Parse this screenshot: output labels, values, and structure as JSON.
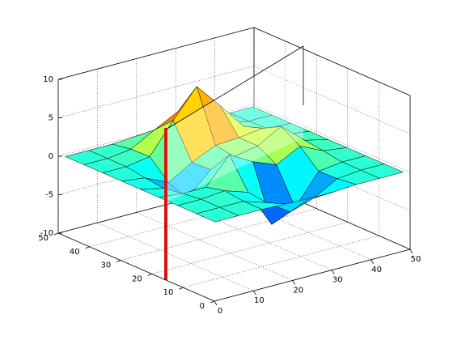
{
  "chart_data": {
    "type": "surface",
    "x": [
      1,
      7,
      13,
      19,
      25,
      31,
      37,
      43,
      49
    ],
    "y": [
      1,
      7,
      13,
      19,
      25,
      31,
      37,
      43,
      49
    ],
    "z": [
      [
        0,
        0,
        0,
        -0.1,
        -0.2,
        -0.2,
        0,
        0,
        0
      ],
      [
        0,
        0,
        0,
        -1.0,
        -3.0,
        -2.0,
        -0.3,
        0,
        0
      ],
      [
        0,
        0,
        0.3,
        -0.7,
        -5.7,
        -4.3,
        -0.4,
        0,
        0
      ],
      [
        0,
        -0.3,
        -0.3,
        3.1,
        1.4,
        0.2,
        1.8,
        0.4,
        0
      ],
      [
        0,
        -0.7,
        -2.8,
        0.1,
        1.0,
        1.6,
        3.3,
        0.7,
        0
      ],
      [
        0,
        -0.4,
        -1.8,
        0,
        1.4,
        1.6,
        2.0,
        0.4,
        0
      ],
      [
        0,
        0,
        0.5,
        4.4,
        8.0,
        4.7,
        1.2,
        0.1,
        0
      ],
      [
        0,
        0,
        0.4,
        2.1,
        3.7,
        2.1,
        0.4,
        0,
        0
      ],
      [
        0,
        0,
        0,
        0.2,
        0.3,
        0.2,
        0,
        0,
        0
      ]
    ],
    "colormap": "jet",
    "xlim": [
      0,
      50
    ],
    "xticks": [
      0,
      10,
      20,
      30,
      40,
      50
    ],
    "ylim": [
      0,
      50
    ],
    "yticks": [
      0,
      10,
      20,
      30,
      40,
      50
    ],
    "zlim": [
      -10,
      10
    ],
    "zticks": [
      -10,
      -5,
      0,
      5,
      10
    ],
    "grid": true
  }
}
